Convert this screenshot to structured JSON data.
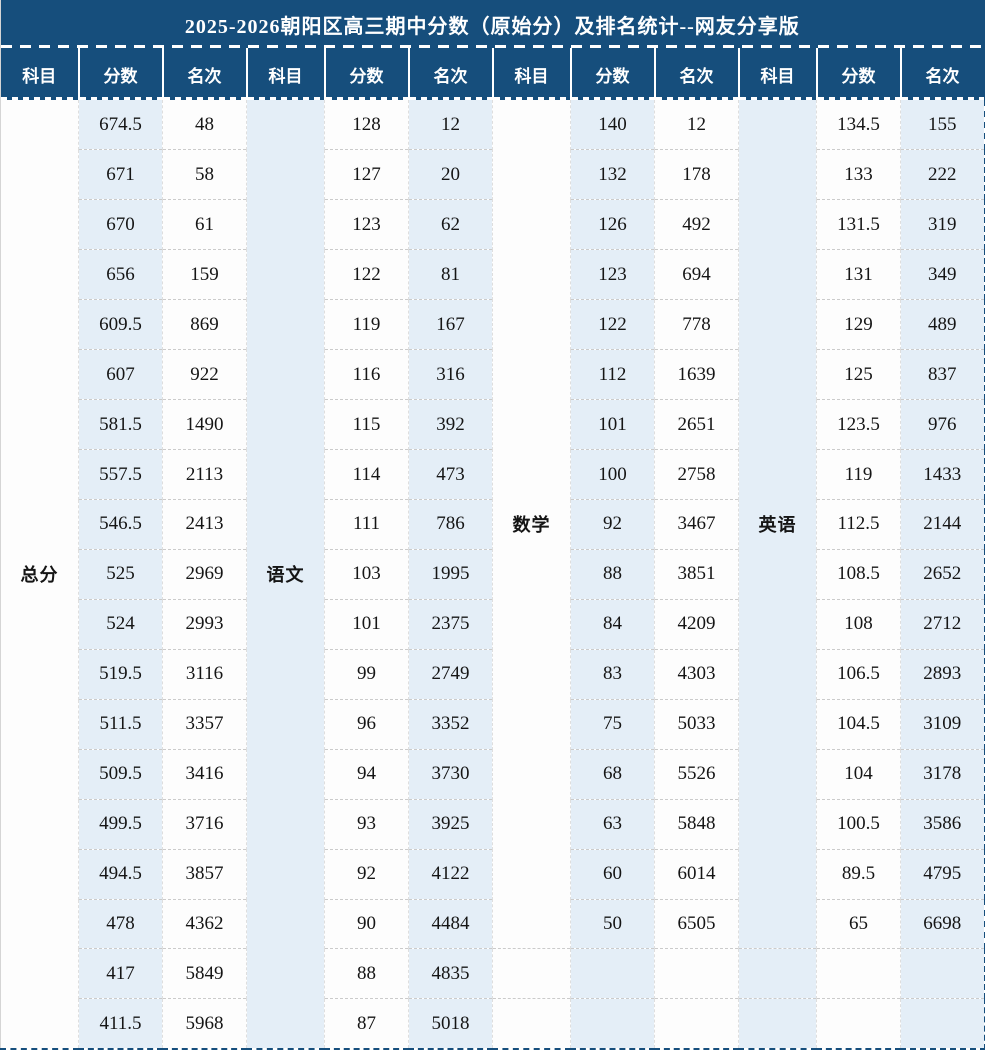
{
  "chart_data": {
    "type": "table",
    "title": "2025-2026朝阳区高三期中分数（原始分）及排名统计--网友分享版",
    "column_headers": [
      "科目",
      "分数",
      "名次",
      "科目",
      "分数",
      "名次",
      "科目",
      "分数",
      "名次",
      "科目",
      "分数",
      "名次"
    ],
    "row_count": 19,
    "groups": [
      {
        "subject": "总分",
        "span": 19,
        "rows": [
          {
            "score": "674.5",
            "rank": "48"
          },
          {
            "score": "671",
            "rank": "58"
          },
          {
            "score": "670",
            "rank": "61"
          },
          {
            "score": "656",
            "rank": "159"
          },
          {
            "score": "609.5",
            "rank": "869"
          },
          {
            "score": "607",
            "rank": "922"
          },
          {
            "score": "581.5",
            "rank": "1490"
          },
          {
            "score": "557.5",
            "rank": "2113"
          },
          {
            "score": "546.5",
            "rank": "2413"
          },
          {
            "score": "525",
            "rank": "2969"
          },
          {
            "score": "524",
            "rank": "2993"
          },
          {
            "score": "519.5",
            "rank": "3116"
          },
          {
            "score": "511.5",
            "rank": "3357"
          },
          {
            "score": "509.5",
            "rank": "3416"
          },
          {
            "score": "499.5",
            "rank": "3716"
          },
          {
            "score": "494.5",
            "rank": "3857"
          },
          {
            "score": "478",
            "rank": "4362"
          },
          {
            "score": "417",
            "rank": "5849"
          },
          {
            "score": "411.5",
            "rank": "5968"
          }
        ]
      },
      {
        "subject": "语文",
        "span": 19,
        "rows": [
          {
            "score": "128",
            "rank": "12"
          },
          {
            "score": "127",
            "rank": "20"
          },
          {
            "score": "123",
            "rank": "62"
          },
          {
            "score": "122",
            "rank": "81"
          },
          {
            "score": "119",
            "rank": "167"
          },
          {
            "score": "116",
            "rank": "316"
          },
          {
            "score": "115",
            "rank": "392"
          },
          {
            "score": "114",
            "rank": "473"
          },
          {
            "score": "111",
            "rank": "786"
          },
          {
            "score": "103",
            "rank": "1995"
          },
          {
            "score": "101",
            "rank": "2375"
          },
          {
            "score": "99",
            "rank": "2749"
          },
          {
            "score": "96",
            "rank": "3352"
          },
          {
            "score": "94",
            "rank": "3730"
          },
          {
            "score": "93",
            "rank": "3925"
          },
          {
            "score": "92",
            "rank": "4122"
          },
          {
            "score": "90",
            "rank": "4484"
          },
          {
            "score": "88",
            "rank": "4835"
          },
          {
            "score": "87",
            "rank": "5018"
          }
        ]
      },
      {
        "subject": "数学",
        "span": 17,
        "rows": [
          {
            "score": "140",
            "rank": "12"
          },
          {
            "score": "132",
            "rank": "178"
          },
          {
            "score": "126",
            "rank": "492"
          },
          {
            "score": "123",
            "rank": "694"
          },
          {
            "score": "122",
            "rank": "778"
          },
          {
            "score": "112",
            "rank": "1639"
          },
          {
            "score": "101",
            "rank": "2651"
          },
          {
            "score": "100",
            "rank": "2758"
          },
          {
            "score": "92",
            "rank": "3467"
          },
          {
            "score": "88",
            "rank": "3851"
          },
          {
            "score": "84",
            "rank": "4209"
          },
          {
            "score": "83",
            "rank": "4303"
          },
          {
            "score": "75",
            "rank": "5033"
          },
          {
            "score": "68",
            "rank": "5526"
          },
          {
            "score": "63",
            "rank": "5848"
          },
          {
            "score": "60",
            "rank": "6014"
          },
          {
            "score": "50",
            "rank": "6505"
          }
        ]
      },
      {
        "subject": "英语",
        "span": 17,
        "rows": [
          {
            "score": "134.5",
            "rank": "155"
          },
          {
            "score": "133",
            "rank": "222"
          },
          {
            "score": "131.5",
            "rank": "319"
          },
          {
            "score": "131",
            "rank": "349"
          },
          {
            "score": "129",
            "rank": "489"
          },
          {
            "score": "125",
            "rank": "837"
          },
          {
            "score": "123.5",
            "rank": "976"
          },
          {
            "score": "119",
            "rank": "1433"
          },
          {
            "score": "112.5",
            "rank": "2144"
          },
          {
            "score": "108.5",
            "rank": "2652"
          },
          {
            "score": "108",
            "rank": "2712"
          },
          {
            "score": "106.5",
            "rank": "2893"
          },
          {
            "score": "104.5",
            "rank": "3109"
          },
          {
            "score": "104",
            "rank": "3178"
          },
          {
            "score": "100.5",
            "rank": "3586"
          },
          {
            "score": "89.5",
            "rank": "4795"
          },
          {
            "score": "65",
            "rank": "6698"
          }
        ]
      }
    ]
  },
  "colors": {
    "header_bg": "#164E7C",
    "header_text": "#FFFFFF",
    "stripe_bg": "#E4EEF7",
    "cell_bg": "#FDFDFD",
    "row_divider": "#CBCBCB",
    "col_divider": "#DEDEDE",
    "outer_border": "#164E7C",
    "body_text": "#151515"
  }
}
